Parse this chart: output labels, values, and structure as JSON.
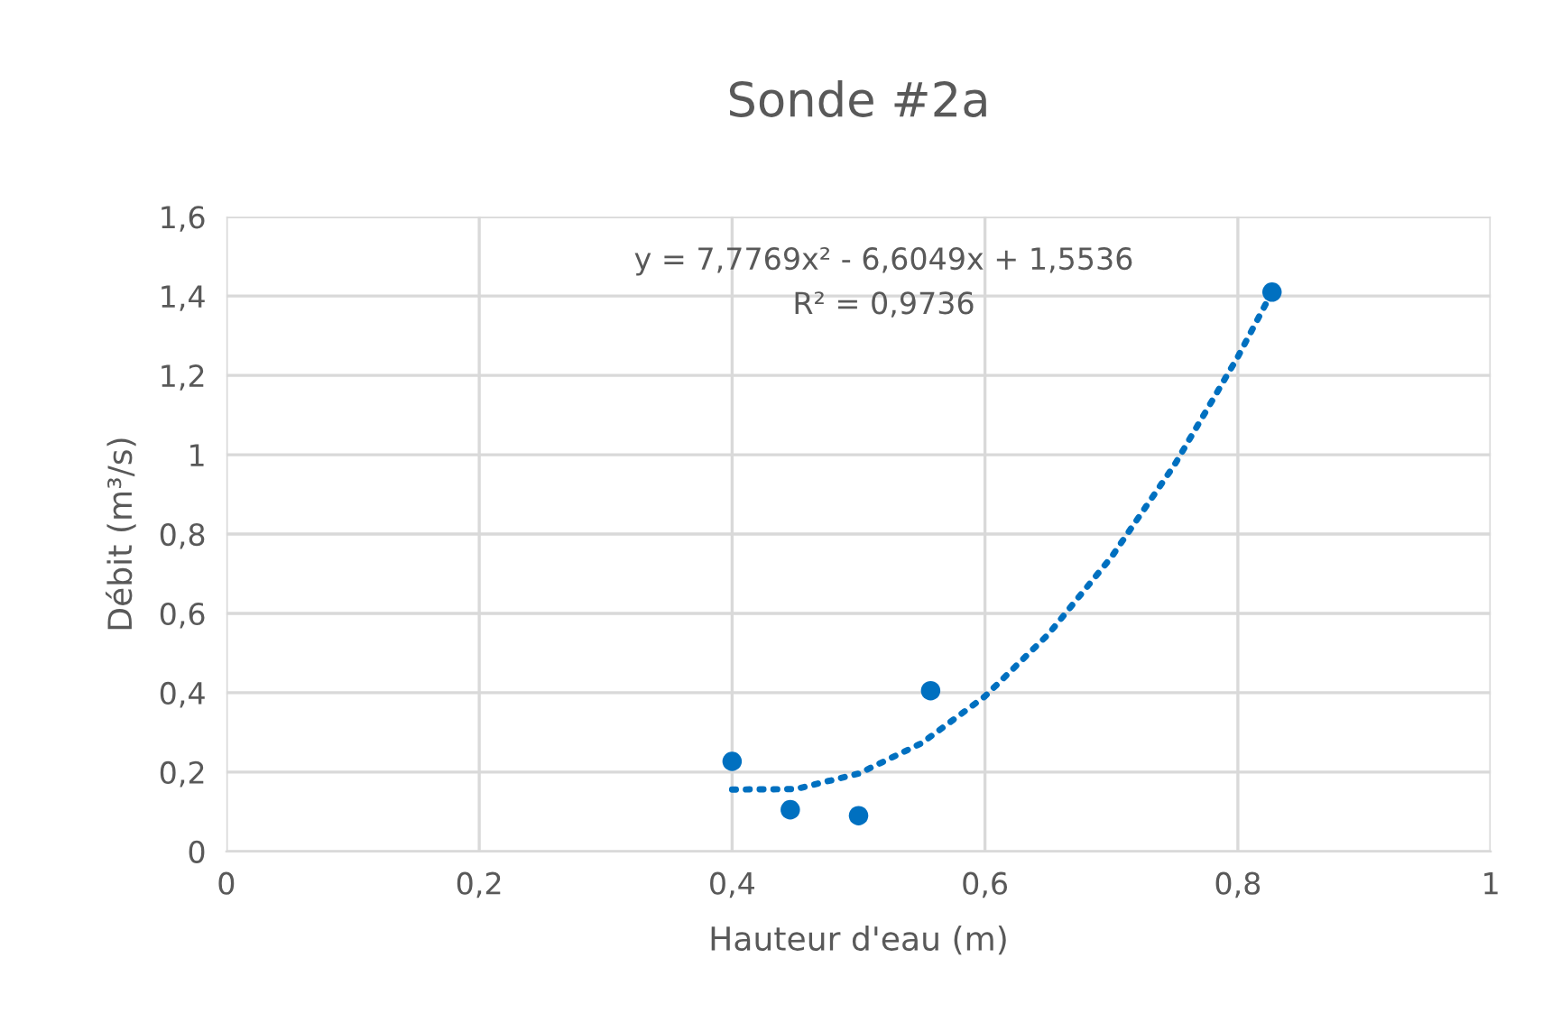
{
  "chart_data": {
    "type": "scatter",
    "title": "Sonde #2a",
    "xlabel": "Hauteur d'eau (m)",
    "ylabel": "Débit (m³/s)",
    "series": [
      {
        "color": "#0070c0",
        "marker": "circle",
        "x": [
          0.4,
          0.446,
          0.5,
          0.557,
          0.827
        ],
        "values": [
          0.227,
          0.105,
          0.09,
          0.405,
          1.41
        ]
      },
      {
        "type": "line",
        "color": "#0070c0",
        "marker": "none",
        "line_style": "dotted",
        "x": [
          0.4,
          0.45,
          0.5,
          0.55,
          0.6,
          0.65,
          0.7,
          0.75,
          0.8,
          0.827
        ],
        "values": [
          0.156,
          0.157,
          0.196,
          0.273,
          0.391,
          0.547,
          0.742,
          0.975,
          1.247,
          1.41
        ]
      }
    ],
    "annotations": [
      "y = 7,7769x² - 6,6049x + 1,5536",
      "R² = 0,9736"
    ],
    "xlim": [
      0,
      1
    ],
    "xticks": [
      0,
      {
        "value": 0.2,
        "label": "0,2"
      },
      {
        "value": 0.4,
        "label": "0,4"
      },
      {
        "value": 0.6,
        "label": "0,6"
      },
      {
        "value": 0.8,
        "label": "0,8"
      },
      1
    ],
    "ylim": [
      0,
      1.6
    ],
    "yticks": [
      0,
      {
        "value": 0.2,
        "label": "0,2"
      },
      {
        "value": 0.4,
        "label": "0,4"
      },
      {
        "value": 0.6,
        "label": "0,6"
      },
      {
        "value": 0.8,
        "label": "0,8"
      },
      1,
      {
        "value": 1.2,
        "label": "1,2"
      },
      {
        "value": 1.4,
        "label": "1,4"
      },
      {
        "value": 1.6,
        "label": "1,6"
      }
    ],
    "grid": true
  }
}
